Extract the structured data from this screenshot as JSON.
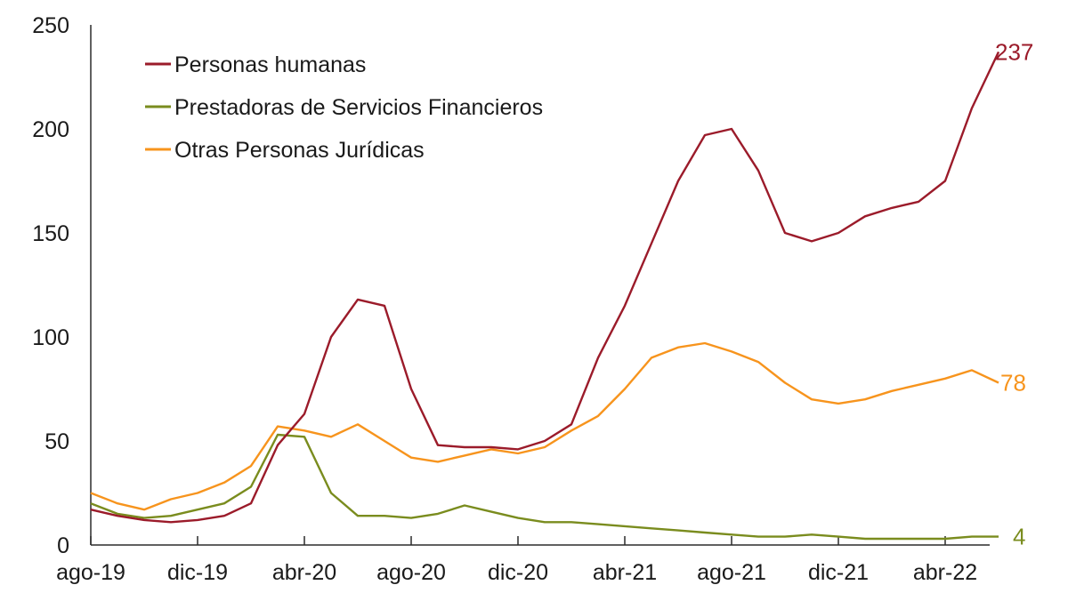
{
  "chart_data": {
    "type": "line",
    "title": "",
    "xlabel": "",
    "ylabel": "",
    "ylim": [
      0,
      250
    ],
    "yticks": [
      "0",
      "50",
      "100",
      "150",
      "200",
      "250"
    ],
    "xticks": [
      "ago-19",
      "dic-19",
      "abr-20",
      "ago-20",
      "dic-20",
      "abr-21",
      "ago-21",
      "dic-21",
      "abr-22"
    ],
    "grid": false,
    "legend_position": "top-left",
    "x": [
      "ago-19",
      "sep-19",
      "oct-19",
      "nov-19",
      "dic-19",
      "ene-20",
      "feb-20",
      "mar-20",
      "abr-20",
      "may-20",
      "jun-20",
      "jul-20",
      "ago-20",
      "sep-20",
      "oct-20",
      "nov-20",
      "dic-20",
      "ene-21",
      "feb-21",
      "mar-21",
      "abr-21",
      "may-21",
      "jun-21",
      "jul-21",
      "ago-21",
      "sep-21",
      "oct-21",
      "nov-21",
      "dic-21",
      "ene-22",
      "feb-22",
      "mar-22",
      "abr-22",
      "may-22",
      "jun-22"
    ],
    "series": [
      {
        "name": "Personas humanas",
        "color": "#9b1b2a",
        "values": [
          17,
          14,
          12,
          11,
          12,
          14,
          20,
          48,
          63,
          100,
          118,
          115,
          75,
          48,
          47,
          47,
          46,
          50,
          58,
          90,
          115,
          145,
          175,
          197,
          200,
          180,
          150,
          146,
          150,
          158,
          162,
          165,
          175,
          210,
          237
        ],
        "end_label": "237"
      },
      {
        "name": "Prestadoras de Servicios Financieros",
        "color": "#7a8c1e",
        "values": [
          20,
          15,
          13,
          14,
          17,
          20,
          28,
          53,
          52,
          25,
          14,
          14,
          13,
          15,
          19,
          16,
          13,
          11,
          11,
          10,
          9,
          8,
          7,
          6,
          5,
          4,
          4,
          5,
          4,
          3,
          3,
          3,
          3,
          4,
          4
        ],
        "end_label": "4"
      },
      {
        "name": "Otras Personas Jurídicas",
        "color": "#f7941d",
        "values": [
          25,
          20,
          17,
          22,
          25,
          30,
          38,
          57,
          55,
          52,
          58,
          50,
          42,
          40,
          43,
          46,
          44,
          47,
          55,
          62,
          75,
          90,
          95,
          97,
          93,
          88,
          78,
          70,
          68,
          70,
          74,
          77,
          80,
          84,
          78
        ],
        "end_label": "78"
      }
    ]
  }
}
